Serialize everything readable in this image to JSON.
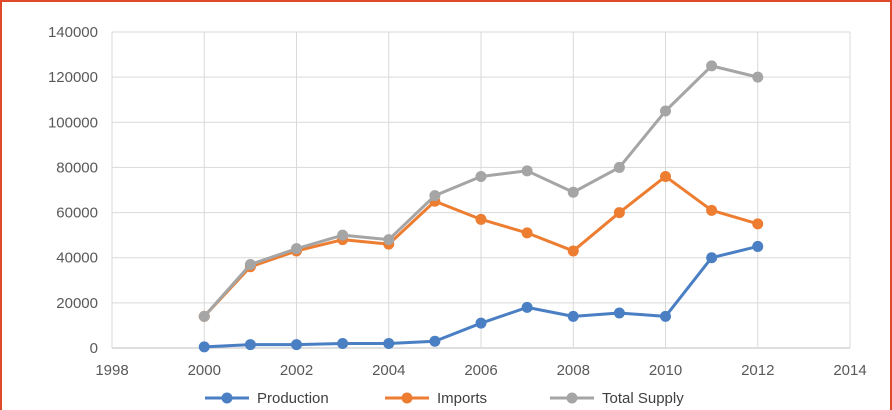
{
  "chart_data": {
    "type": "scatter",
    "title": "",
    "xlabel": "",
    "ylabel": "",
    "xlim": [
      1998,
      2014
    ],
    "ylim": [
      0,
      140000
    ],
    "x_ticks": [
      1998,
      2000,
      2002,
      2004,
      2006,
      2008,
      2010,
      2012,
      2014
    ],
    "y_ticks": [
      0,
      20000,
      40000,
      60000,
      80000,
      100000,
      120000,
      140000
    ],
    "grid": true,
    "legend_position": "bottom",
    "x": [
      2000,
      2001,
      2002,
      2003,
      2004,
      2005,
      2006,
      2007,
      2008,
      2009,
      2010,
      2011,
      2012
    ],
    "series": [
      {
        "name": "Production",
        "color": "#4a7fc4",
        "values": [
          500,
          1500,
          1500,
          2000,
          2000,
          3000,
          11000,
          18000,
          14000,
          15500,
          14000,
          40000,
          45000
        ]
      },
      {
        "name": "Imports",
        "color": "#ed7d31",
        "values": [
          14000,
          36000,
          43000,
          48000,
          46000,
          65000,
          57000,
          51000,
          43000,
          60000,
          76000,
          61000,
          55000
        ]
      },
      {
        "name": "Total Supply",
        "color": "#a5a5a5",
        "values": [
          14000,
          37000,
          44000,
          50000,
          48000,
          67500,
          76000,
          78500,
          69000,
          80000,
          105000,
          125000,
          120000
        ]
      }
    ]
  }
}
